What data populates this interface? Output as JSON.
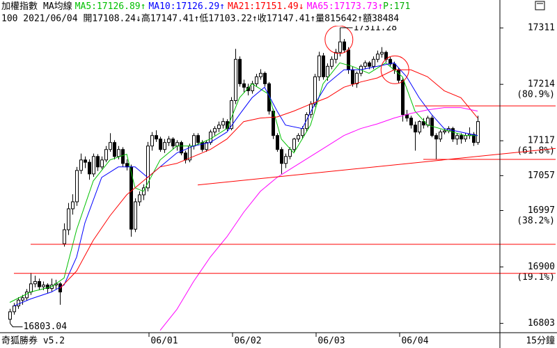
{
  "chart_data": {
    "type": "candlestick",
    "header_title": "加權指數",
    "header_sub": "MA均線",
    "header_extra": "P:171",
    "header_extra_color": "#00b000",
    "quote": "100 2021/06/04 開17108.24↓高17147.41↑低17103.22↑收17147.41↑量815642↑額38484",
    "footer_left": "奇狐勝券 v5.2",
    "footer_right": "15分鐘",
    "xlim": [
      -2.33,
      117.33
    ],
    "ylim": [
      16787,
      17359
    ],
    "yticks": [
      17311,
      17214,
      17117,
      17057,
      16997,
      16900,
      16803
    ],
    "fib_labels": [
      {
        "value": 17214,
        "label": "(80.9%)"
      },
      {
        "value": 17117,
        "label": "(61.8%)"
      },
      {
        "value": 16997,
        "label": "(38.2%)"
      },
      {
        "value": 16900,
        "label": "(19.1%)"
      }
    ],
    "xticks": [
      {
        "value": 37,
        "label": "06/01"
      },
      {
        "value": 57,
        "label": "06/02"
      },
      {
        "value": 77,
        "label": "06/03"
      },
      {
        "value": 97,
        "label": "06/04"
      }
    ],
    "candles": [
      [
        16810,
        16828,
        16803.04,
        16823
      ],
      [
        16823,
        16838,
        16818,
        16833
      ],
      [
        16833,
        16848,
        16828,
        16843
      ],
      [
        16843,
        16852,
        16835,
        16847
      ],
      [
        16847,
        16862,
        16842,
        16857
      ],
      [
        16857,
        16890,
        16852,
        16871
      ],
      [
        16871,
        16885,
        16865,
        16875
      ],
      [
        16875,
        16880,
        16860,
        16866
      ],
      [
        16866,
        16875,
        16860,
        16869
      ],
      [
        16869,
        16872,
        16855,
        16863
      ],
      [
        16863,
        16880,
        16858,
        16869
      ],
      [
        16869,
        16878,
        16862,
        16871
      ],
      [
        16871,
        16874,
        16835,
        16857
      ],
      [
        16940,
        16975,
        16935,
        16964
      ],
      [
        16964,
        17010,
        16955,
        17000
      ],
      [
        17000,
        17025,
        16990,
        17012
      ],
      [
        17012,
        17072,
        17005,
        17066
      ],
      [
        17066,
        17095,
        17060,
        17084
      ],
      [
        17084,
        17090,
        17070,
        17080
      ],
      [
        17080,
        17085,
        17050,
        17060
      ],
      [
        17060,
        17095,
        17055,
        17090
      ],
      [
        17090,
        17094,
        17065,
        17072
      ],
      [
        17072,
        17090,
        17068,
        17084
      ],
      [
        17084,
        17108,
        17080,
        17102
      ],
      [
        17102,
        17130,
        17098,
        17114
      ],
      [
        17114,
        17118,
        17085,
        17090
      ],
      [
        17090,
        17108,
        17085,
        17102
      ],
      [
        17102,
        17106,
        17072,
        17078
      ],
      [
        17078,
        17085,
        17066,
        17072
      ],
      [
        17072,
        17076,
        16952,
        16965
      ],
      [
        16965,
        17018,
        16960,
        17012
      ],
      [
        17012,
        17030,
        17005,
        17024
      ],
      [
        17024,
        17042,
        17015,
        17036
      ],
      [
        17036,
        17115,
        17030,
        17108
      ],
      [
        17108,
        17132,
        17100,
        17126
      ],
      [
        17126,
        17135,
        17115,
        17120
      ],
      [
        17120,
        17124,
        17098,
        17102
      ],
      [
        17102,
        17120,
        17096,
        17114
      ],
      [
        17114,
        17125,
        17108,
        17120
      ],
      [
        17120,
        17123,
        17103,
        17108
      ],
      [
        17108,
        17118,
        17100,
        17114
      ],
      [
        17114,
        17117,
        17092,
        17096
      ],
      [
        17096,
        17100,
        17078,
        17084
      ],
      [
        17084,
        17112,
        17080,
        17108
      ],
      [
        17108,
        17130,
        17102,
        17126
      ],
      [
        17126,
        17130,
        17110,
        17114
      ],
      [
        17114,
        17118,
        17098,
        17102
      ],
      [
        17102,
        17118,
        17098,
        17114
      ],
      [
        17114,
        17136,
        17110,
        17132
      ],
      [
        17132,
        17142,
        17126,
        17138
      ],
      [
        17138,
        17150,
        17132,
        17144
      ],
      [
        17144,
        17156,
        17138,
        17150
      ],
      [
        17150,
        17154,
        17134,
        17138
      ],
      [
        17138,
        17192,
        17135,
        17186
      ],
      [
        17186,
        17275,
        17180,
        17257
      ],
      [
        17257,
        17262,
        17210,
        17215
      ],
      [
        17215,
        17222,
        17200,
        17209
      ],
      [
        17209,
        17215,
        17195,
        17203
      ],
      [
        17203,
        17220,
        17198,
        17215
      ],
      [
        17215,
        17232,
        17210,
        17227
      ],
      [
        17227,
        17240,
        17222,
        17233
      ],
      [
        17233,
        17236,
        17210,
        17215
      ],
      [
        17215,
        17218,
        17162,
        17168
      ],
      [
        17168,
        17172,
        17120,
        17126
      ],
      [
        17126,
        17130,
        17098,
        17102
      ],
      [
        17102,
        17106,
        17060,
        17078
      ],
      [
        17078,
        17095,
        17070,
        17090
      ],
      [
        17090,
        17106,
        17085,
        17102
      ],
      [
        17102,
        17122,
        17098,
        17120
      ],
      [
        17120,
        17130,
        17115,
        17126
      ],
      [
        17126,
        17142,
        17120,
        17138
      ],
      [
        17138,
        17166,
        17132,
        17162
      ],
      [
        17162,
        17185,
        17156,
        17180
      ],
      [
        17180,
        17232,
        17175,
        17227
      ],
      [
        17227,
        17270,
        17220,
        17263
      ],
      [
        17263,
        17268,
        17222,
        17227
      ],
      [
        17227,
        17250,
        17220,
        17245
      ],
      [
        17245,
        17262,
        17240,
        17257
      ],
      [
        17257,
        17275,
        17250,
        17269
      ],
      [
        17269,
        17311.28,
        17262,
        17287
      ],
      [
        17287,
        17292,
        17268,
        17273
      ],
      [
        17273,
        17278,
        17232,
        17239
      ],
      [
        17239,
        17244,
        17210,
        17215
      ],
      [
        17215,
        17236,
        17208,
        17233
      ],
      [
        17233,
        17248,
        17228,
        17245
      ],
      [
        17245,
        17255,
        17240,
        17251
      ],
      [
        17251,
        17254,
        17240,
        17245
      ],
      [
        17245,
        17262,
        17240,
        17257
      ],
      [
        17257,
        17272,
        17252,
        17266
      ],
      [
        17266,
        17278,
        17260,
        17269
      ],
      [
        17269,
        17272,
        17252,
        17257
      ],
      [
        17257,
        17262,
        17244,
        17249
      ],
      [
        17249,
        17253,
        17232,
        17239
      ],
      [
        17239,
        17243,
        17216,
        17221
      ],
      [
        17221,
        17226,
        17150,
        17162
      ],
      [
        17162,
        17170,
        17150,
        17156
      ],
      [
        17156,
        17160,
        17138,
        17144
      ],
      [
        17144,
        17150,
        17100,
        17132
      ],
      [
        17132,
        17152,
        17128,
        17150
      ],
      [
        17150,
        17156,
        17138,
        17144
      ],
      [
        17144,
        17160,
        17140,
        17156
      ],
      [
        17156,
        17160,
        17123,
        17126
      ],
      [
        17126,
        17130,
        17085,
        17120
      ],
      [
        17120,
        17136,
        17115,
        17132
      ],
      [
        17132,
        17138,
        17128,
        17134
      ],
      [
        17134,
        17142,
        17130,
        17138
      ],
      [
        17138,
        17141,
        17115,
        17120
      ],
      [
        17120,
        17130,
        17110,
        17126
      ],
      [
        17126,
        17130,
        17112,
        17120
      ],
      [
        17120,
        17130,
        17115,
        17126
      ],
      [
        17126,
        17140,
        17120,
        17128
      ],
      [
        17128,
        17132,
        17108,
        17114
      ],
      [
        17114,
        17160,
        17110,
        17150
      ]
    ],
    "series": [
      {
        "name": "MA5:17126.89",
        "arrow": "↑",
        "color": "#00c000",
        "x": [
          0,
          5,
          10,
          13,
          16,
          20,
          24,
          28,
          30,
          32,
          36,
          40,
          44,
          48,
          52,
          55,
          58,
          62,
          65,
          68,
          72,
          75,
          79,
          82,
          86,
          90,
          94,
          97,
          100,
          103,
          106,
          109,
          112
        ],
        "values": [
          16839,
          16857,
          16866,
          16881,
          16964,
          17048,
          17084,
          17094,
          17036,
          17030,
          17084,
          17108,
          17108,
          17120,
          17138,
          17191,
          17215,
          17197,
          17120,
          17096,
          17144,
          17215,
          17251,
          17245,
          17233,
          17251,
          17227,
          17168,
          17144,
          17138,
          17132,
          17126,
          17126
        ]
      },
      {
        "name": "MA10:17126.29",
        "arrow": "↑",
        "color": "#0000ff",
        "x": [
          1,
          5,
          10,
          13,
          16,
          18,
          22,
          26,
          30,
          33,
          36,
          40,
          44,
          48,
          52,
          55,
          58,
          61,
          64,
          66,
          70,
          73,
          76,
          80,
          84,
          88,
          92,
          95,
          98,
          101,
          104,
          108,
          112
        ],
        "values": [
          16833,
          16845,
          16857,
          16869,
          16917,
          16976,
          17054,
          17072,
          17072,
          17054,
          17072,
          17096,
          17108,
          17114,
          17132,
          17162,
          17191,
          17209,
          17168,
          17144,
          17138,
          17180,
          17215,
          17239,
          17239,
          17245,
          17251,
          17227,
          17191,
          17162,
          17138,
          17132,
          17126
        ]
      },
      {
        "name": "MA21:17151.49",
        "arrow": "↓",
        "color": "#ff0000",
        "x": [
          12,
          16,
          20,
          24,
          28,
          32,
          36,
          40,
          44,
          48,
          52,
          56,
          60,
          64,
          68,
          72,
          76,
          80,
          84,
          88,
          92,
          96,
          100,
          104,
          108,
          112
        ],
        "values": [
          16863,
          16893,
          16946,
          16988,
          17024,
          17048,
          17072,
          17078,
          17090,
          17102,
          17120,
          17150,
          17156,
          17158,
          17168,
          17180,
          17191,
          17209,
          17218,
          17225,
          17239,
          17239,
          17227,
          17203,
          17191,
          17156
        ]
      },
      {
        "name": "MA65:17173.73",
        "arrow": "↑",
        "color": "#ff00ff",
        "x": [
          36,
          40,
          44,
          48,
          52,
          56,
          60,
          64,
          68,
          72,
          76,
          80,
          84,
          88,
          92,
          96,
          100,
          104,
          108,
          112
        ],
        "values": [
          16791,
          16827,
          16875,
          16917,
          16952,
          16994,
          17030,
          17054,
          17072,
          17090,
          17108,
          17126,
          17138,
          17146,
          17156,
          17164,
          17170,
          17174,
          17174,
          17168
        ]
      }
    ],
    "hlines": [
      {
        "value": 17177,
        "x_start": 97
      },
      {
        "value": 17085,
        "x_start": 99
      },
      {
        "value": 16939,
        "x_start": 5
      },
      {
        "value": 16889,
        "x_start": 1
      }
    ],
    "trendlines": [
      {
        "x": [
          45,
          131
        ],
        "values": [
          17041,
          17104
        ]
      }
    ],
    "line_color": "#ff0000",
    "circles": [
      {
        "x": 78.8,
        "y": 17291
      },
      {
        "x": 92.2,
        "y": 17239
      }
    ],
    "annotations": [
      {
        "text": "17311.28",
        "x": 79,
        "y": 17311.28
      },
      {
        "text": "16803.04",
        "x": 0,
        "y": 16803.04
      }
    ]
  }
}
